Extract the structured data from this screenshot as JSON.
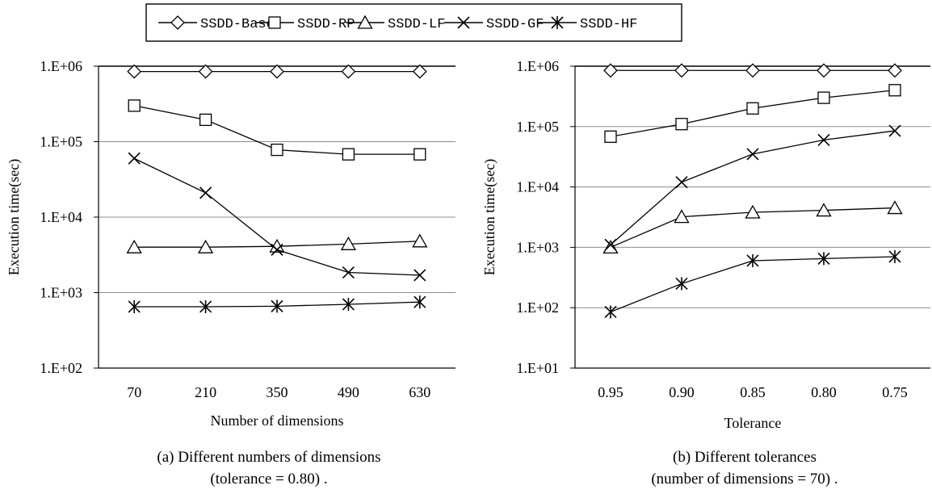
{
  "legend": {
    "entries": [
      {
        "label": "SSDD-Base",
        "marker": "diamond"
      },
      {
        "label": "SSDD-RP",
        "marker": "square"
      },
      {
        "label": "SSDD-LF",
        "marker": "triangle"
      },
      {
        "label": "SSDD-GF",
        "marker": "x"
      },
      {
        "label": "SSDD-HF",
        "marker": "asterisk"
      }
    ],
    "placement": "top-center"
  },
  "chart_data": [
    {
      "type": "line",
      "y_scale": "log",
      "categories": [
        "70",
        "210",
        "350",
        "490",
        "630"
      ],
      "xlabel": "Number of dimensions",
      "ylabel": "Execution time(sec)",
      "ylim": [
        100,
        1000000
      ],
      "yticks": [
        "1.E+02",
        "1.E+03",
        "1.E+04",
        "1.E+05",
        "1.E+06"
      ],
      "grid": true,
      "caption_line1": "(a) Different numbers of dimensions",
      "caption_line2": "(tolerance = 0.80) .",
      "series": [
        {
          "name": "SSDD-Base",
          "marker": "diamond",
          "values": [
            850000,
            850000,
            850000,
            850000,
            850000
          ]
        },
        {
          "name": "SSDD-RP",
          "marker": "square",
          "values": [
            300000,
            195000,
            78000,
            68000,
            68000
          ]
        },
        {
          "name": "SSDD-LF",
          "marker": "triangle",
          "values": [
            4000,
            4000,
            4100,
            4400,
            4800
          ]
        },
        {
          "name": "SSDD-GF",
          "marker": "x",
          "values": [
            60000,
            21000,
            3700,
            1850,
            1700
          ]
        },
        {
          "name": "SSDD-HF",
          "marker": "asterisk",
          "values": [
            650,
            650,
            660,
            700,
            750
          ]
        }
      ]
    },
    {
      "type": "line",
      "y_scale": "log",
      "categories": [
        "0.95",
        "0.90",
        "0.85",
        "0.80",
        "0.75"
      ],
      "xlabel": "Tolerance",
      "ylabel": "Execution time(sec)",
      "ylim": [
        10,
        1000000
      ],
      "yticks": [
        "1.E+01",
        "1.E+02",
        "1.E+03",
        "1.E+04",
        "1.E+05",
        "1.E+06"
      ],
      "grid": true,
      "caption_line1": "(b) Different tolerances",
      "caption_line2": "(number of  dimensions = 70) .",
      "series": [
        {
          "name": "SSDD-Base",
          "marker": "diamond",
          "values": [
            850000,
            850000,
            850000,
            850000,
            850000
          ]
        },
        {
          "name": "SSDD-RP",
          "marker": "square",
          "values": [
            68000,
            110000,
            200000,
            300000,
            400000
          ]
        },
        {
          "name": "SSDD-LF",
          "marker": "triangle",
          "values": [
            1000,
            3200,
            3800,
            4100,
            4500
          ]
        },
        {
          "name": "SSDD-GF",
          "marker": "x",
          "values": [
            1100,
            12000,
            35000,
            60000,
            85000
          ]
        },
        {
          "name": "SSDD-HF",
          "marker": "asterisk",
          "values": [
            85,
            250,
            600,
            650,
            700
          ]
        }
      ]
    }
  ]
}
